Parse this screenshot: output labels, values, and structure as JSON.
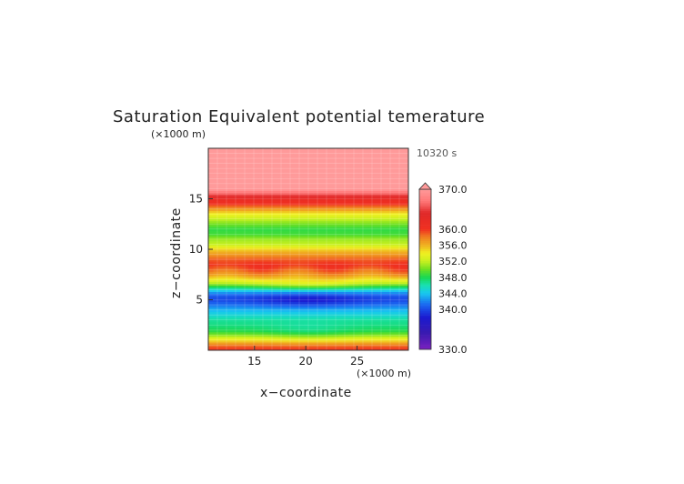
{
  "chart_data": {
    "type": "heatmap",
    "title": "Saturation Equivalent potential temerature",
    "time_label": "10320 s",
    "xlabel": "x−coordinate",
    "ylabel": "z−coordinate",
    "x_unit": "(×1000 m)",
    "y_unit": "(×1000 m)",
    "xlim": [
      10.5,
      30
    ],
    "ylim": [
      0,
      20
    ],
    "x_ticks": [
      15,
      20,
      25
    ],
    "y_ticks": [
      5,
      10,
      15
    ],
    "colorbar": {
      "min": 330,
      "max": 370,
      "labels": [
        "370.0",
        "360.0",
        "356.0",
        "352.0",
        "348.0",
        "344.0",
        "340.0",
        "330.0"
      ],
      "label_values": [
        370,
        360,
        356,
        352,
        348,
        344,
        340,
        330
      ],
      "extend": "max"
    },
    "profile": [
      {
        "z": 0.0,
        "theta_es": 360
      },
      {
        "z": 0.4,
        "theta_es": 359
      },
      {
        "z": 0.8,
        "theta_es": 356
      },
      {
        "z": 1.2,
        "theta_es": 353
      },
      {
        "z": 1.6,
        "theta_es": 350
      },
      {
        "z": 2.0,
        "theta_es": 348
      },
      {
        "z": 2.5,
        "theta_es": 347
      },
      {
        "z": 3.0,
        "theta_es": 346.5
      },
      {
        "z": 3.5,
        "theta_es": 345
      },
      {
        "z": 4.0,
        "theta_es": 343.5
      },
      {
        "z": 4.5,
        "theta_es": 341.5
      },
      {
        "z": 5.0,
        "theta_es": 340
      },
      {
        "z": 5.4,
        "theta_es": 340.5
      },
      {
        "z": 5.8,
        "theta_es": 343
      },
      {
        "z": 6.2,
        "theta_es": 347
      },
      {
        "z": 6.6,
        "theta_es": 351
      },
      {
        "z": 7.0,
        "theta_es": 354
      },
      {
        "z": 7.5,
        "theta_es": 357
      },
      {
        "z": 8.0,
        "theta_es": 359
      },
      {
        "z": 8.5,
        "theta_es": 360
      },
      {
        "z": 9.0,
        "theta_es": 359
      },
      {
        "z": 9.5,
        "theta_es": 357
      },
      {
        "z": 10.0,
        "theta_es": 355
      },
      {
        "z": 10.5,
        "theta_es": 352
      },
      {
        "z": 11.0,
        "theta_es": 351
      },
      {
        "z": 11.5,
        "theta_es": 349
      },
      {
        "z": 12.0,
        "theta_es": 348.5
      },
      {
        "z": 12.5,
        "theta_es": 350
      },
      {
        "z": 13.0,
        "theta_es": 352
      },
      {
        "z": 13.5,
        "theta_es": 354
      },
      {
        "z": 14.0,
        "theta_es": 357
      },
      {
        "z": 14.5,
        "theta_es": 360
      },
      {
        "z": 15.0,
        "theta_es": 362
      },
      {
        "z": 15.5,
        "theta_es": 366
      },
      {
        "z": 16.0,
        "theta_es": 370
      },
      {
        "z": 20.0,
        "theta_es": 370
      }
    ]
  }
}
